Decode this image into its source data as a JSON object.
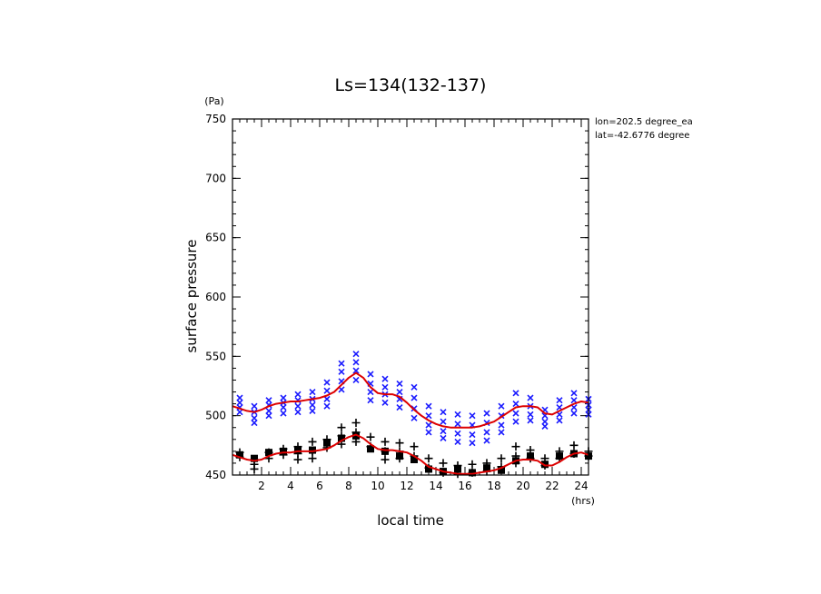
{
  "chart_data": {
    "type": "scatter",
    "title": "Ls=134(132-137)",
    "xlabel": "local time",
    "ylabel": "surface pressure",
    "x_unit": "(hrs)",
    "y_unit": "(Pa)",
    "xlim": [
      0.0,
      24.5
    ],
    "ylim": [
      450,
      750
    ],
    "xticks": [
      2,
      4,
      6,
      8,
      10,
      12,
      14,
      16,
      18,
      20,
      22,
      24
    ],
    "yticks": [
      450,
      500,
      550,
      600,
      650,
      700,
      750
    ],
    "annotations": [
      "lon=202.5 degree_ea",
      "lat=-42.6776 degree"
    ],
    "colors": {
      "blue_series": "#1a1aff",
      "black_series": "#000000",
      "fit_line": "#dd0000"
    },
    "series": [
      {
        "marker": "x",
        "color": "#1a1aff",
        "points": [
          [
            0.5,
            515
          ],
          [
            0.5,
            511
          ],
          [
            0.5,
            507
          ],
          [
            0.5,
            503
          ],
          [
            1.5,
            508
          ],
          [
            1.5,
            503
          ],
          [
            1.5,
            498
          ],
          [
            1.5,
            494
          ],
          [
            2.5,
            513
          ],
          [
            2.5,
            509
          ],
          [
            2.5,
            504
          ],
          [
            2.5,
            500
          ],
          [
            3.5,
            515
          ],
          [
            3.5,
            511
          ],
          [
            3.5,
            507
          ],
          [
            3.5,
            502
          ],
          [
            4.5,
            518
          ],
          [
            4.5,
            513
          ],
          [
            4.5,
            508
          ],
          [
            4.5,
            503
          ],
          [
            5.5,
            520
          ],
          [
            5.5,
            514
          ],
          [
            5.5,
            509
          ],
          [
            5.5,
            504
          ],
          [
            6.5,
            528
          ],
          [
            6.5,
            521
          ],
          [
            6.5,
            514
          ],
          [
            6.5,
            508
          ],
          [
            7.5,
            544
          ],
          [
            7.5,
            537
          ],
          [
            7.5,
            529
          ],
          [
            7.5,
            522
          ],
          [
            8.5,
            552
          ],
          [
            8.5,
            545
          ],
          [
            8.5,
            538
          ],
          [
            8.5,
            530
          ],
          [
            9.5,
            535
          ],
          [
            9.5,
            527
          ],
          [
            9.5,
            520
          ],
          [
            9.5,
            513
          ],
          [
            10.5,
            531
          ],
          [
            10.5,
            524
          ],
          [
            10.5,
            518
          ],
          [
            10.5,
            511
          ],
          [
            11.5,
            527
          ],
          [
            11.5,
            520
          ],
          [
            11.5,
            514
          ],
          [
            11.5,
            507
          ],
          [
            12.5,
            524
          ],
          [
            12.5,
            515
          ],
          [
            12.5,
            506
          ],
          [
            12.5,
            498
          ],
          [
            13.5,
            508
          ],
          [
            13.5,
            500
          ],
          [
            13.5,
            492
          ],
          [
            13.5,
            486
          ],
          [
            14.5,
            503
          ],
          [
            14.5,
            495
          ],
          [
            14.5,
            487
          ],
          [
            14.5,
            481
          ],
          [
            15.5,
            501
          ],
          [
            15.5,
            493
          ],
          [
            15.5,
            485
          ],
          [
            15.5,
            478
          ],
          [
            16.5,
            500
          ],
          [
            16.5,
            492
          ],
          [
            16.5,
            484
          ],
          [
            16.5,
            477
          ],
          [
            17.5,
            502
          ],
          [
            17.5,
            494
          ],
          [
            17.5,
            486
          ],
          [
            17.5,
            479
          ],
          [
            18.5,
            508
          ],
          [
            18.5,
            500
          ],
          [
            18.5,
            492
          ],
          [
            18.5,
            486
          ],
          [
            19.5,
            519
          ],
          [
            19.5,
            510
          ],
          [
            19.5,
            502
          ],
          [
            19.5,
            495
          ],
          [
            20.5,
            515
          ],
          [
            20.5,
            508
          ],
          [
            20.5,
            501
          ],
          [
            20.5,
            496
          ],
          [
            21.5,
            505
          ],
          [
            21.5,
            500
          ],
          [
            21.5,
            495
          ],
          [
            21.5,
            491
          ],
          [
            22.5,
            513
          ],
          [
            22.5,
            507
          ],
          [
            22.5,
            501
          ],
          [
            22.5,
            496
          ],
          [
            23.5,
            519
          ],
          [
            23.5,
            513
          ],
          [
            23.5,
            507
          ],
          [
            23.5,
            502
          ],
          [
            24.5,
            514
          ],
          [
            24.5,
            509
          ],
          [
            24.5,
            505
          ],
          [
            24.5,
            501
          ]
        ]
      },
      {
        "marker": "+",
        "color": "#000000",
        "points": [
          [
            0.5,
            469
          ],
          [
            0.5,
            465
          ],
          [
            1.5,
            463
          ],
          [
            1.5,
            459
          ],
          [
            1.5,
            455
          ],
          [
            2.5,
            469
          ],
          [
            2.5,
            464
          ],
          [
            3.5,
            472
          ],
          [
            3.5,
            467
          ],
          [
            4.5,
            474
          ],
          [
            4.5,
            468
          ],
          [
            4.5,
            463
          ],
          [
            5.5,
            478
          ],
          [
            5.5,
            470
          ],
          [
            5.5,
            464
          ],
          [
            6.5,
            480
          ],
          [
            6.5,
            473
          ],
          [
            7.5,
            490
          ],
          [
            7.5,
            483
          ],
          [
            7.5,
            476
          ],
          [
            8.5,
            494
          ],
          [
            8.5,
            486
          ],
          [
            8.5,
            478
          ],
          [
            9.5,
            482
          ],
          [
            9.5,
            474
          ],
          [
            10.5,
            478
          ],
          [
            10.5,
            470
          ],
          [
            10.5,
            463
          ],
          [
            11.5,
            477
          ],
          [
            11.5,
            470
          ],
          [
            11.5,
            464
          ],
          [
            12.5,
            474
          ],
          [
            12.5,
            466
          ],
          [
            13.5,
            464
          ],
          [
            13.5,
            456
          ],
          [
            14.5,
            460
          ],
          [
            14.5,
            452
          ],
          [
            15.5,
            458
          ],
          [
            15.5,
            451
          ],
          [
            16.5,
            459
          ],
          [
            16.5,
            452
          ],
          [
            17.5,
            460
          ],
          [
            17.5,
            453
          ],
          [
            18.5,
            464
          ],
          [
            18.5,
            457
          ],
          [
            19.5,
            474
          ],
          [
            19.5,
            466
          ],
          [
            19.5,
            460
          ],
          [
            20.5,
            471
          ],
          [
            20.5,
            464
          ],
          [
            21.5,
            464
          ],
          [
            21.5,
            458
          ],
          [
            22.5,
            470
          ],
          [
            22.5,
            464
          ],
          [
            23.5,
            475
          ],
          [
            23.5,
            468
          ],
          [
            24.5,
            470
          ],
          [
            24.5,
            466
          ]
        ]
      },
      {
        "marker": "square",
        "color": "#000000",
        "points": [
          [
            0.5,
            467
          ],
          [
            1.5,
            464
          ],
          [
            2.5,
            469
          ],
          [
            3.5,
            470
          ],
          [
            4.5,
            471
          ],
          [
            5.5,
            471
          ],
          [
            6.5,
            477
          ],
          [
            7.5,
            481
          ],
          [
            8.5,
            483
          ],
          [
            9.5,
            472
          ],
          [
            10.5,
            470
          ],
          [
            11.5,
            466
          ],
          [
            12.5,
            463
          ],
          [
            13.5,
            455
          ],
          [
            14.5,
            453
          ],
          [
            15.5,
            455
          ],
          [
            16.5,
            452
          ],
          [
            17.5,
            456
          ],
          [
            18.5,
            454
          ],
          [
            19.5,
            462
          ],
          [
            20.5,
            466
          ],
          [
            21.5,
            459
          ],
          [
            22.5,
            466
          ],
          [
            23.5,
            468
          ],
          [
            24.5,
            466
          ]
        ]
      }
    ],
    "lines": [
      {
        "color": "#dd0000",
        "x": [
          0.0,
          0.5,
          1.0,
          1.5,
          2.0,
          2.5,
          3.0,
          3.5,
          4.0,
          4.5,
          5.0,
          5.5,
          6.0,
          6.5,
          7.0,
          7.5,
          8.0,
          8.5,
          9.0,
          9.5,
          10.0,
          10.5,
          11.0,
          11.5,
          12.0,
          12.5,
          13.0,
          13.5,
          14.0,
          14.5,
          15.0,
          15.5,
          16.0,
          16.5,
          17.0,
          17.5,
          18.0,
          18.5,
          19.0,
          19.5,
          20.0,
          20.5,
          21.0,
          21.5,
          22.0,
          22.5,
          23.0,
          23.5,
          24.0,
          24.5
        ],
        "y": [
          508,
          506,
          504,
          503,
          505,
          508,
          510,
          511,
          512,
          512,
          513,
          514,
          515,
          517,
          520,
          526,
          532,
          536,
          532,
          524,
          519,
          518,
          518,
          516,
          511,
          505,
          500,
          496,
          493,
          491,
          490,
          490,
          490,
          490,
          491,
          493,
          495,
          499,
          503,
          507,
          508,
          508,
          507,
          502,
          501,
          504,
          507,
          510,
          512,
          511
        ]
      },
      {
        "color": "#dd0000",
        "x": [
          0.0,
          0.5,
          1.0,
          1.5,
          2.0,
          2.5,
          3.0,
          3.5,
          4.0,
          4.5,
          5.0,
          5.5,
          6.0,
          6.5,
          7.0,
          7.5,
          8.0,
          8.5,
          9.0,
          9.5,
          10.0,
          10.5,
          11.0,
          11.5,
          12.0,
          12.5,
          13.0,
          13.5,
          14.0,
          14.5,
          15.0,
          15.5,
          16.0,
          16.5,
          17.0,
          17.5,
          18.0,
          18.5,
          19.0,
          19.5,
          20.0,
          20.5,
          21.0,
          21.5,
          22.0,
          22.5,
          23.0,
          23.5,
          24.0,
          24.5
        ],
        "y": [
          467,
          465,
          463,
          462,
          463,
          466,
          468,
          469,
          469,
          470,
          470,
          470,
          471,
          472,
          475,
          479,
          482,
          484,
          481,
          476,
          472,
          471,
          471,
          470,
          469,
          466,
          462,
          457,
          455,
          453,
          452,
          451,
          451,
          451,
          452,
          453,
          454,
          456,
          459,
          462,
          463,
          463,
          462,
          458,
          458,
          461,
          465,
          468,
          469,
          467
        ]
      }
    ]
  }
}
